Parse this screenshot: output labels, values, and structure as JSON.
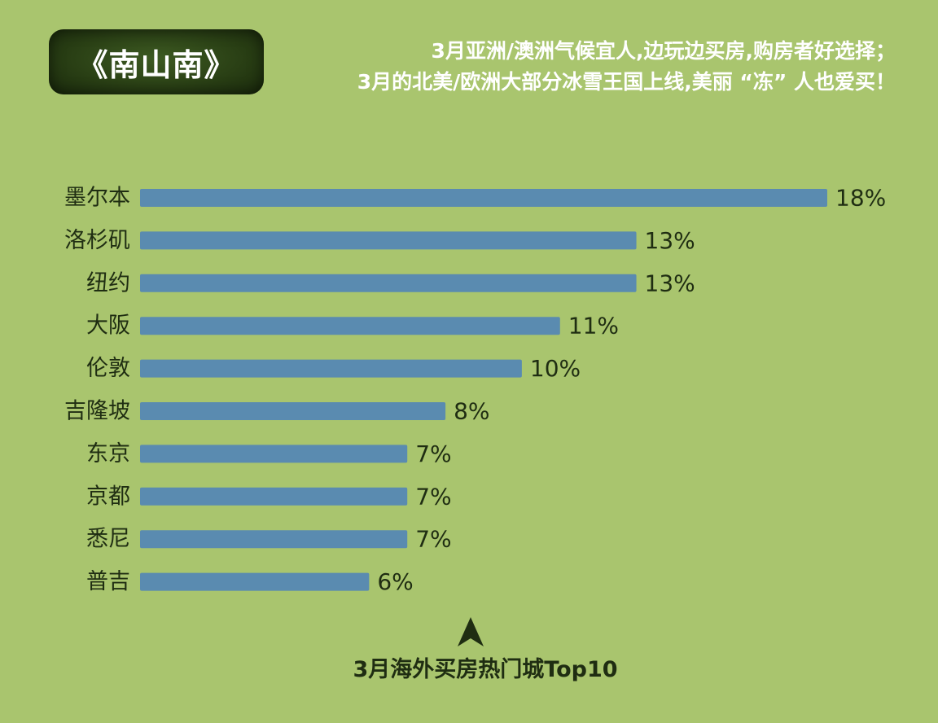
{
  "badge": {
    "title": "《南山南》"
  },
  "headline": {
    "line1": "3月亚洲/澳洲气候宜人,边玩边买房,购房者好选择；",
    "line2": "3月的北美/欧洲大部分冰雪王国上线,美丽 “冻” 人也爱买！"
  },
  "footer": {
    "pointer_icon": "up-arrowhead-icon",
    "caption": "3月海外买房热门城Top10"
  },
  "colors": {
    "background": "#a9c56e",
    "bar": "#5a8bb0",
    "badge": "#2a4015",
    "text": "#1f2d12"
  },
  "chart_data": {
    "type": "bar",
    "orientation": "horizontal",
    "categories": [
      "墨尔本",
      "洛杉矶",
      "纽约",
      "大阪",
      "伦敦",
      "吉隆坡",
      "东京",
      "京都",
      "悉尼",
      "普吉"
    ],
    "values": [
      18,
      13,
      13,
      11,
      10,
      8,
      7,
      7,
      7,
      6
    ],
    "value_labels": [
      "18%",
      "13%",
      "13%",
      "11%",
      "10%",
      "8%",
      "7%",
      "7%",
      "7%",
      "6%"
    ],
    "unit": "%",
    "xlim": [
      0,
      18
    ],
    "grid": false,
    "legend": "none",
    "title": ""
  }
}
